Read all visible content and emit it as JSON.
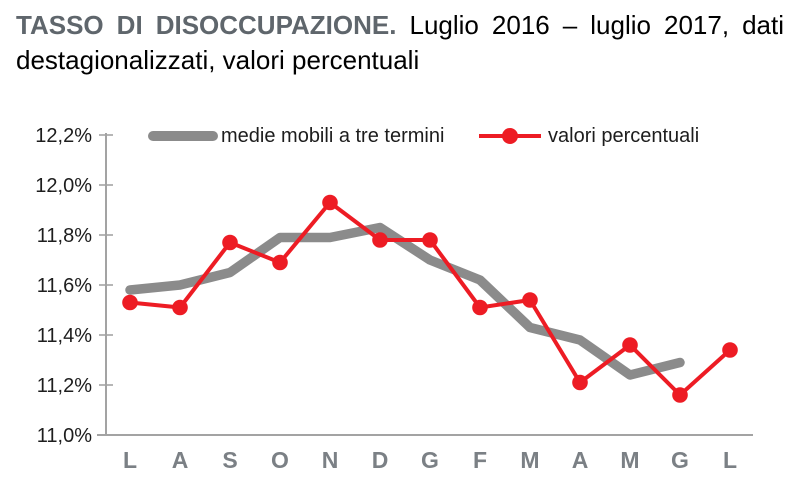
{
  "title": {
    "line1_emphasis": "TASSO DI DISOCCUPAZIONE.",
    "line1_rest": " Luglio 2016 – luglio 2017, dati",
    "line2": "destagionalizzati, valori percentuali"
  },
  "colors": {
    "accent_red": "#ED1C24",
    "series_gray": "#8b8b8b",
    "axis_gray": "#a3a3a3",
    "title_gray": "#5f666c",
    "text_dark": "#1d1d1d",
    "month_label_gray": "#7b8085"
  },
  "chart_data": {
    "type": "line",
    "title": "TASSO DI DISOCCUPAZIONE. Luglio 2016 – luglio 2017, dati destagionalizzati, valori percentuali",
    "xlabel": "",
    "ylabel": "",
    "categories": [
      "L",
      "A",
      "S",
      "O",
      "N",
      "D",
      "G",
      "F",
      "M",
      "A",
      "M",
      "G",
      "L"
    ],
    "series": [
      {
        "name": "medie mobili a tre termini",
        "color": "#8b8b8b",
        "style": "thick",
        "values": [
          11.58,
          11.6,
          11.65,
          11.79,
          11.79,
          11.83,
          11.7,
          11.62,
          11.43,
          11.38,
          11.24,
          11.29,
          null
        ]
      },
      {
        "name": "valori percentuali",
        "color": "#ED1C24",
        "style": "line-marker",
        "values": [
          11.53,
          11.51,
          11.77,
          11.69,
          11.93,
          11.78,
          11.78,
          11.51,
          11.54,
          11.21,
          11.36,
          11.16,
          11.34
        ]
      }
    ],
    "ylim": [
      11.0,
      12.2
    ],
    "ytick_values": [
      12.2,
      12.0,
      11.8,
      11.6,
      11.4,
      11.2,
      11.0
    ],
    "ytick_labels": [
      "12,2%",
      "12,0%",
      "11,8%",
      "11,6%",
      "11,4%",
      "11,2%",
      "11,0%"
    ],
    "grid": false,
    "legend_position": "top"
  }
}
